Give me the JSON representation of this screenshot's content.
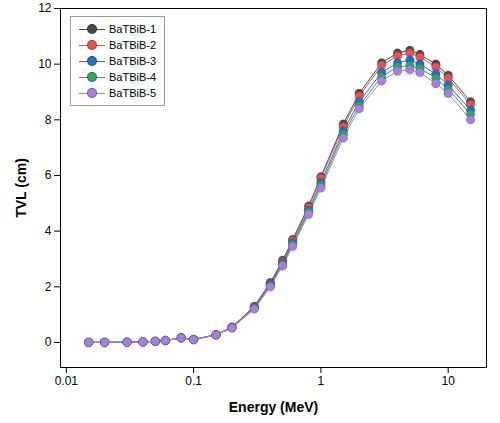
{
  "chart_data": {
    "type": "line",
    "x_label": "Energy (MeV)",
    "y_label": "TVL (cm)",
    "log": "x",
    "legend": "upper left",
    "marker": "circle",
    "x": [
      0.015,
      0.02,
      0.03,
      0.04,
      0.05,
      0.06,
      0.08,
      0.1,
      0.15,
      0.2,
      0.3,
      0.4,
      0.5,
      0.6,
      0.8,
      1,
      1.5,
      2,
      3,
      4,
      5,
      6,
      8,
      10,
      15
    ],
    "xlim": [
      0.009,
      20
    ],
    "xticks": [
      0.01,
      0.1,
      1,
      10
    ],
    "ylim": [
      -0.9,
      12
    ],
    "yticks": [
      0,
      2,
      4,
      6,
      8,
      10,
      12
    ],
    "series": [
      {
        "name": "BaTBiB-1",
        "color": "#4a4a4a",
        "values": [
          0.003,
          0.005,
          0.01,
          0.02,
          0.04,
          0.07,
          0.17,
          0.11,
          0.28,
          0.55,
          1.3,
          2.15,
          2.95,
          3.7,
          4.9,
          5.95,
          7.85,
          8.95,
          10.05,
          10.4,
          10.5,
          10.35,
          10.0,
          9.6,
          8.65
        ]
      },
      {
        "name": "BaTBiB-2",
        "color": "#e8514f",
        "values": [
          0.003,
          0.005,
          0.01,
          0.02,
          0.04,
          0.07,
          0.17,
          0.11,
          0.28,
          0.54,
          1.28,
          2.12,
          2.9,
          3.65,
          4.85,
          5.9,
          7.75,
          8.85,
          9.95,
          10.3,
          10.4,
          10.25,
          9.9,
          9.5,
          8.55
        ]
      },
      {
        "name": "BaTBiB-3",
        "color": "#2270c8",
        "values": [
          0.003,
          0.005,
          0.01,
          0.02,
          0.04,
          0.07,
          0.16,
          0.1,
          0.27,
          0.53,
          1.25,
          2.08,
          2.85,
          3.58,
          4.75,
          5.75,
          7.6,
          8.65,
          9.7,
          10.05,
          10.15,
          10.0,
          9.65,
          9.25,
          8.35
        ]
      },
      {
        "name": "BaTBiB-4",
        "color": "#2fa56a",
        "values": [
          0.003,
          0.005,
          0.01,
          0.02,
          0.04,
          0.07,
          0.16,
          0.1,
          0.27,
          0.53,
          1.23,
          2.04,
          2.8,
          3.52,
          4.68,
          5.65,
          7.48,
          8.5,
          9.55,
          9.9,
          9.95,
          9.85,
          9.5,
          9.1,
          8.2
        ]
      },
      {
        "name": "BaTBiB-5",
        "color": "#a680e0",
        "values": [
          0.003,
          0.005,
          0.01,
          0.02,
          0.04,
          0.07,
          0.16,
          0.1,
          0.27,
          0.52,
          1.2,
          2.0,
          2.75,
          3.45,
          4.6,
          5.55,
          7.35,
          8.4,
          9.4,
          9.75,
          9.8,
          9.7,
          9.3,
          8.95,
          8.0
        ]
      }
    ]
  }
}
